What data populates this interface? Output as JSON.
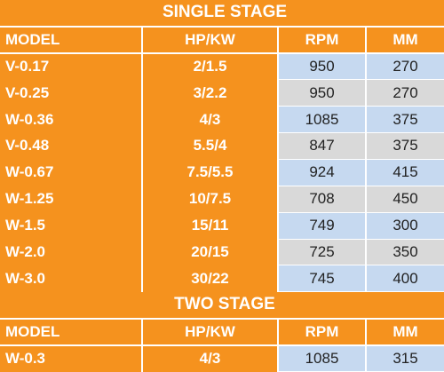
{
  "sections": [
    {
      "title": "SINGLE STAGE",
      "header": [
        "MODEL",
        "HP/KW",
        "RPM",
        "MM"
      ],
      "rows": [
        [
          "V-0.17",
          "2/1.5",
          "950",
          "270"
        ],
        [
          "V-0.25",
          "3/2.2",
          "950",
          "270"
        ],
        [
          "W-0.36",
          "4/3",
          "1085",
          "375"
        ],
        [
          "V-0.48",
          "5.5/4",
          "847",
          "375"
        ],
        [
          "W-0.67",
          "7.5/5.5",
          "924",
          "415"
        ],
        [
          "W-1.25",
          "10/7.5",
          "708",
          "450"
        ],
        [
          "W-1.5",
          "15/11",
          "749",
          "300"
        ],
        [
          "W-2.0",
          "20/15",
          "725",
          "350"
        ],
        [
          "W-3.0",
          "30/22",
          "745",
          "400"
        ]
      ]
    },
    {
      "title": "TWO STAGE",
      "header": [
        "MODEL",
        "HP/KW",
        "RPM",
        "MM"
      ],
      "rows": [
        [
          "W-0.3",
          "4/3",
          "1085",
          "315"
        ]
      ]
    }
  ]
}
